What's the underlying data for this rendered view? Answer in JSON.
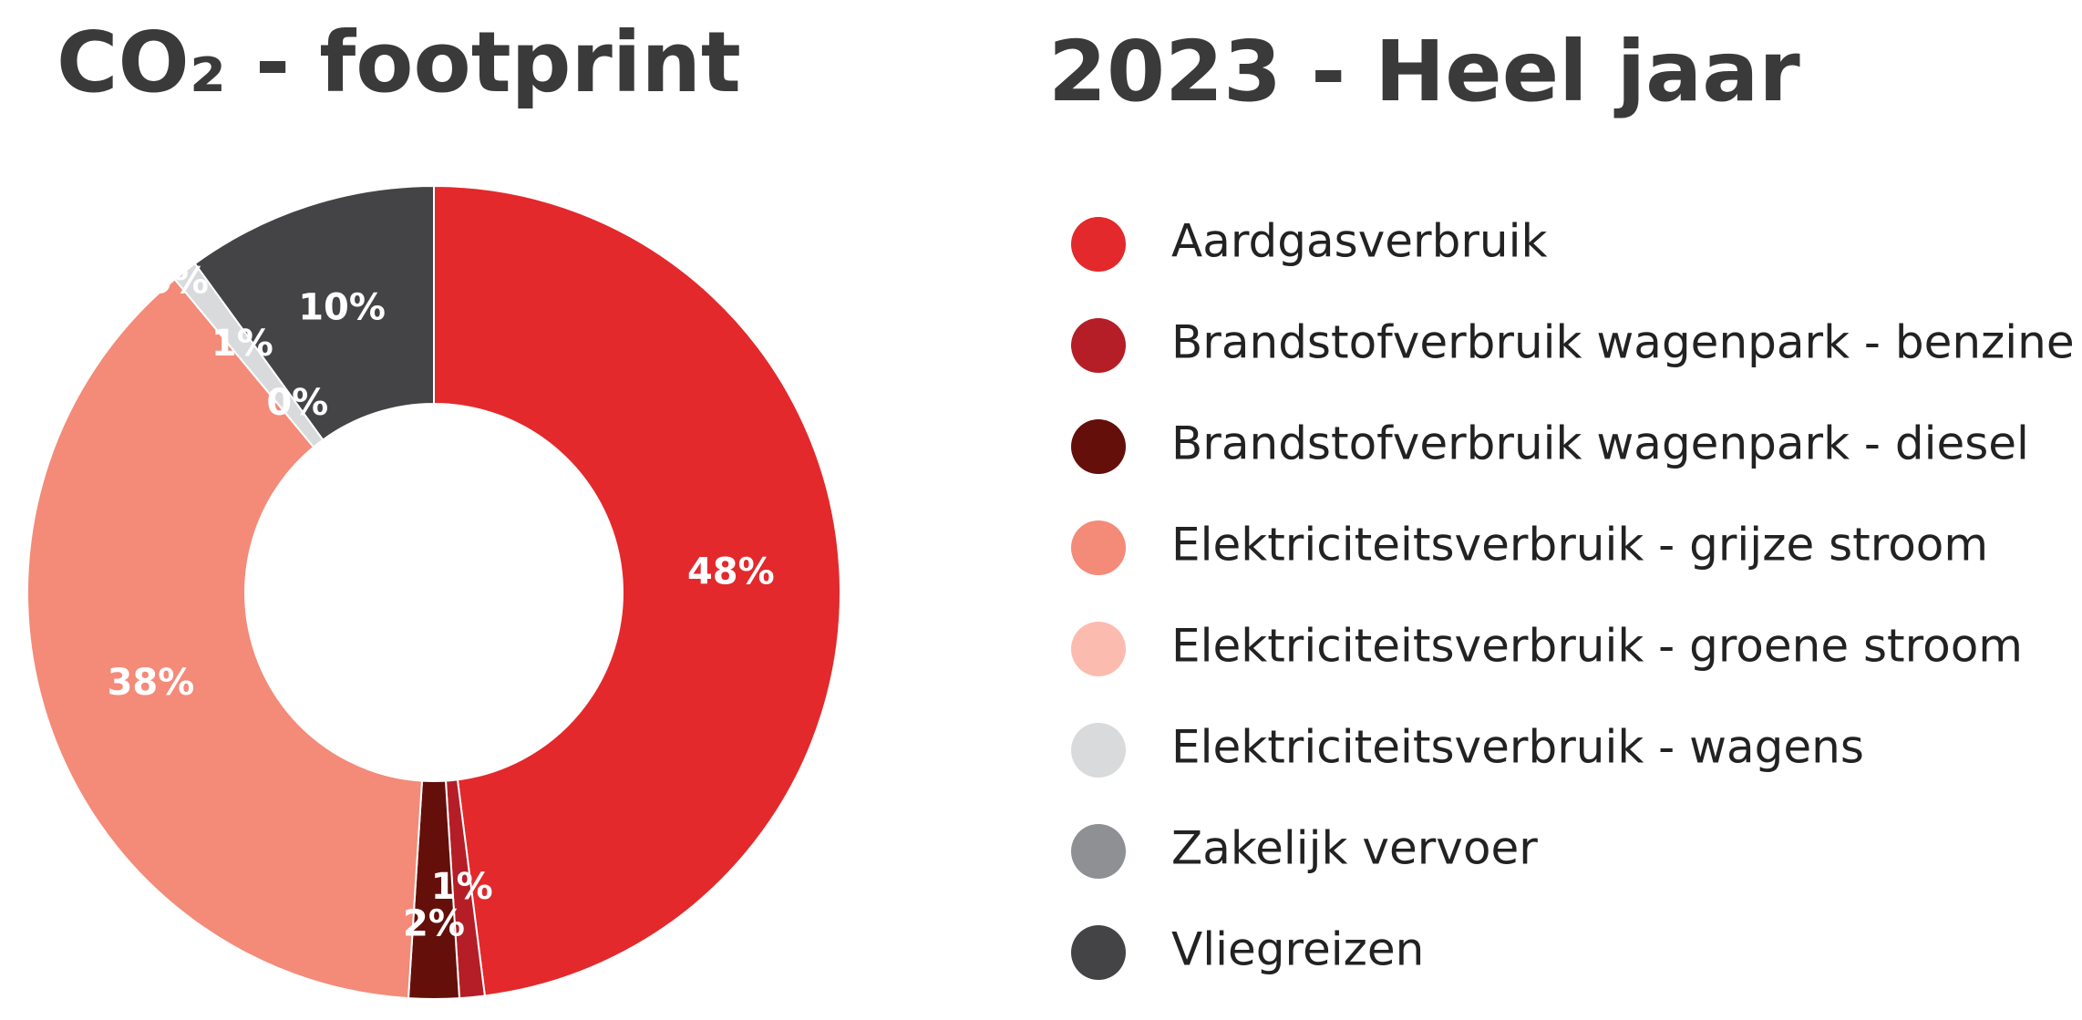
{
  "chart_data": {
    "type": "pie",
    "donut": true,
    "title": "CO₂ - footprint",
    "subtitle": "2023 - Heel jaar",
    "categories": [
      "Aardgasverbruik",
      "Brandstofverbruik wagenpark - benzine",
      "Brandstofverbruik wagenpark - diesel",
      "Elektriciteitsverbruik - grijze stroom",
      "Elektriciteitsverbruik - groene stroom",
      "Elektriciteitsverbruik - wagens",
      "Zakelijk vervoer",
      "Vliegreizen"
    ],
    "values": [
      48,
      1,
      2,
      38,
      0,
      1,
      0,
      10
    ],
    "value_labels": [
      "48%",
      "1%",
      "2%",
      "38%",
      "0%",
      "1%",
      "0%",
      "10%"
    ],
    "colors": [
      "#e3292b",
      "#b51e27",
      "#640f0a",
      "#f48a78",
      "#fbbcaf",
      "#d9dadb",
      "#8e9093",
      "#444446"
    ]
  }
}
